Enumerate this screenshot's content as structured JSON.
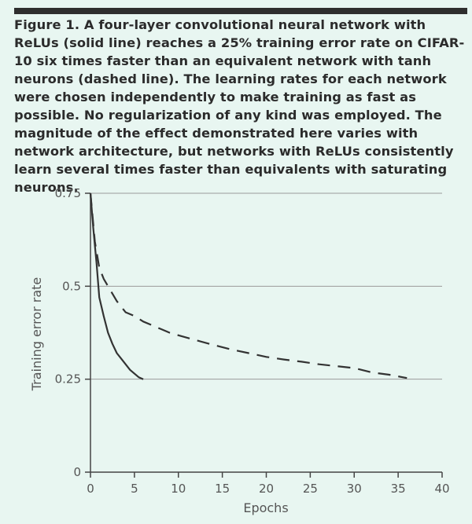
{
  "caption": "Figure 1. A four-layer convolutional neural network with ReLUs (solid line) reaches a 25% training error rate on CIFAR-10 six times faster than an equivalent network with tanh neurons (dashed line). The learning rates for each network were chosen independently to make training as fast as possible. No regularization of any kind was employed. The magnitude of the effect demonstrated here varies with network architecture, but networks with ReLUs consistently learn several times faster than equivalents with saturating neurons.",
  "chart_data": {
    "type": "line",
    "title": "",
    "xlabel": "Epochs",
    "ylabel": "Training error rate",
    "xlim": [
      0,
      40
    ],
    "ylim": [
      0,
      0.75
    ],
    "xticks": [
      0,
      5,
      10,
      15,
      20,
      25,
      30,
      35,
      40
    ],
    "xtick_labels": [
      "0",
      "5",
      "10",
      "15",
      "20",
      "25",
      "30",
      "35",
      "40"
    ],
    "yticks": [
      0,
      0.25,
      0.5,
      0.75
    ],
    "ytick_labels": [
      "0",
      "0.25",
      "0.5",
      "0.75"
    ],
    "grid": "horizontal",
    "legend": "none",
    "series": [
      {
        "style": "solid",
        "color": "#333333",
        "x": [
          0,
          0.3,
          0.7,
          1,
          1.5,
          2,
          2.5,
          3,
          3.5,
          4,
          4.5,
          5,
          5.5,
          6
        ],
        "y": [
          0.75,
          0.66,
          0.56,
          0.47,
          0.42,
          0.375,
          0.345,
          0.32,
          0.305,
          0.29,
          0.275,
          0.265,
          0.255,
          0.25
        ]
      },
      {
        "style": "dashed",
        "color": "#333333",
        "x": [
          0,
          0.5,
          1,
          1.5,
          2,
          3,
          4,
          5,
          6,
          7,
          8,
          9,
          10,
          12,
          14,
          16,
          18,
          20,
          22,
          24,
          26,
          28,
          30,
          32,
          34,
          36
        ],
        "y": [
          0.75,
          0.62,
          0.55,
          0.52,
          0.5,
          0.46,
          0.43,
          0.42,
          0.405,
          0.395,
          0.385,
          0.375,
          0.368,
          0.355,
          0.342,
          0.33,
          0.32,
          0.31,
          0.303,
          0.297,
          0.29,
          0.285,
          0.28,
          0.268,
          0.262,
          0.253
        ]
      }
    ]
  }
}
